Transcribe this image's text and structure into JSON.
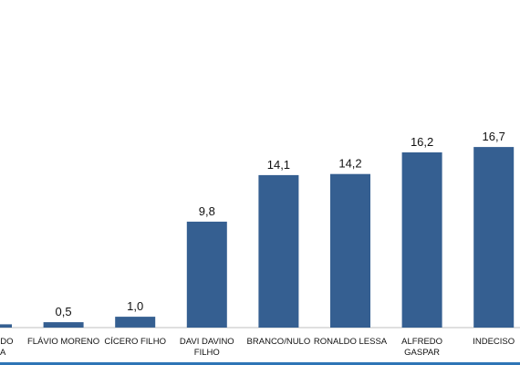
{
  "chart_data": {
    "type": "bar",
    "categories": [
      [
        "RONALDO",
        "LESSA"
      ],
      [
        "FLÁVIO MORENO"
      ],
      [
        "CÍCERO FILHO"
      ],
      [
        "DAVI DAVINO",
        "FILHO"
      ],
      [
        "BRANCO/NULO"
      ],
      [
        "RONALDO LESSA"
      ],
      [
        "ALFREDO",
        "GASPAR"
      ],
      [
        "INDECISO"
      ]
    ],
    "values": [
      0.3,
      0.5,
      1.0,
      9.8,
      14.1,
      14.2,
      16.2,
      16.7
    ],
    "value_labels": [
      "",
      "0,5",
      "1,0",
      "9,8",
      "14,1",
      "14,2",
      "16,2",
      "16,7"
    ],
    "title": "",
    "xlabel": "",
    "ylabel": "",
    "ylim": [
      0,
      30
    ],
    "grid": false,
    "legend": "none",
    "bar_color": "#355f91",
    "axis_color": "#bfbfbf"
  },
  "colors": {
    "bottom_rule": "#2e75b6"
  }
}
